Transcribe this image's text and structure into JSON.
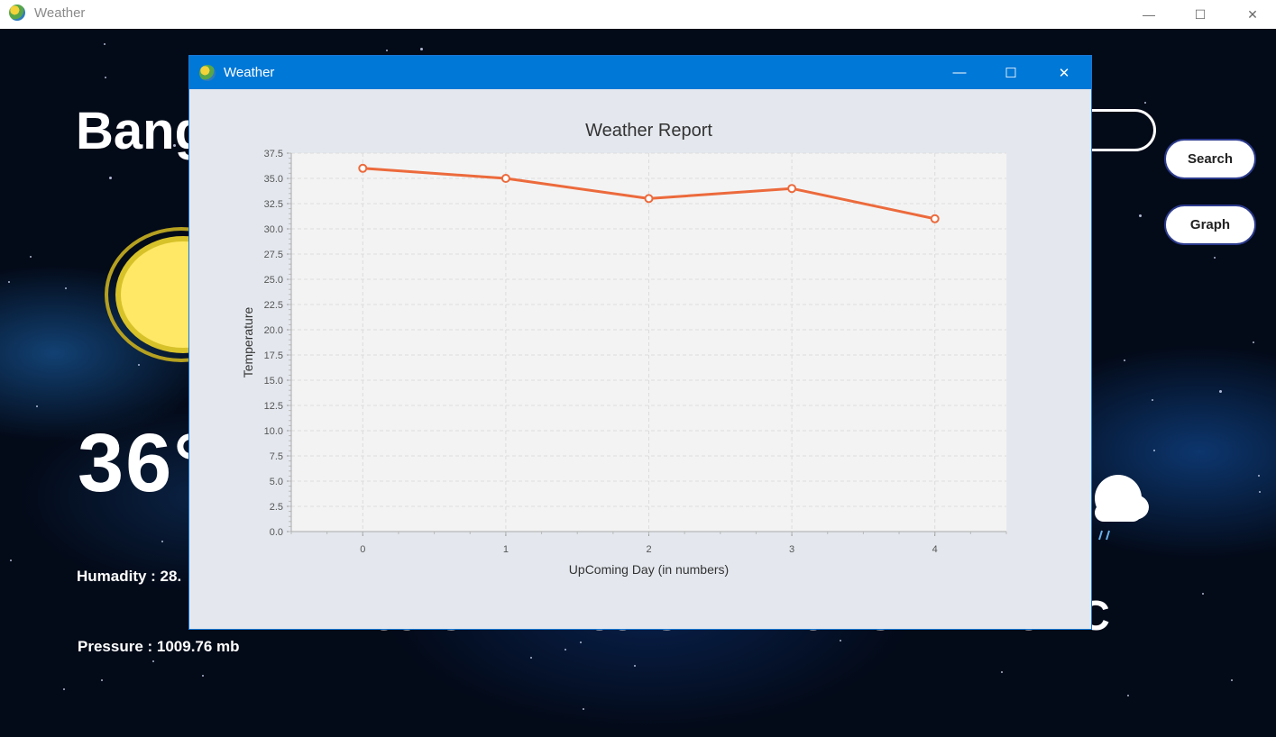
{
  "main_window": {
    "title": "Weather"
  },
  "background": {
    "city": "Bang",
    "current_temp": "36°",
    "humidity_text": "Humadity : 28.",
    "pressure_text": "Pressure : 1009.76 mb",
    "search_label": "Search",
    "graph_label": "Graph",
    "forecast": [
      "35°C",
      "33°C",
      "34°C",
      "31°C"
    ],
    "icons": {
      "current": "sun-icon",
      "forecast": "rain-cloud-icon"
    }
  },
  "dialog": {
    "title": "Weather"
  },
  "chart_data": {
    "type": "line",
    "title": "Weather Report",
    "xlabel": "UpComing Day (in numbers)",
    "ylabel": "Temperature",
    "x": [
      0,
      1,
      2,
      3,
      4
    ],
    "y": [
      36,
      35,
      33,
      34,
      31
    ],
    "xlim": [
      -0.5,
      4.5
    ],
    "ylim": [
      0,
      37.5
    ],
    "y_ticks": [
      "0.0",
      "2.5",
      "5.0",
      "7.5",
      "10.0",
      "12.5",
      "15.0",
      "17.5",
      "20.0",
      "22.5",
      "25.0",
      "27.5",
      "30.0",
      "32.5",
      "35.0",
      "37.5"
    ],
    "x_ticks": [
      "0",
      "1",
      "2",
      "3",
      "4"
    ],
    "grid": true,
    "line_color": "#ec6a3c",
    "plot_bg": "#f3f3f3"
  }
}
